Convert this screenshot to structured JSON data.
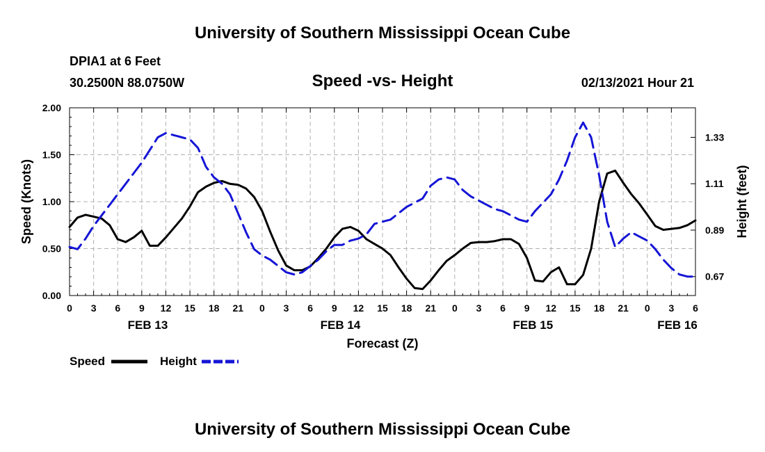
{
  "header": {
    "top_title": "University of Southern Mississippi Ocean Cube",
    "station": "DPIA1 at 6 Feet",
    "coords": "30.2500N 88.0750W",
    "datetime": "02/13/2021 Hour 21",
    "bottom_title": "University of Southern Mississippi Ocean Cube"
  },
  "colors": {
    "speed": "#000000",
    "height": "#1515d6",
    "grid": "#b0b0b0"
  },
  "legend": {
    "speed_label": "Speed",
    "height_label": "Height"
  },
  "chart_data": {
    "type": "line",
    "title": "Speed -vs- Height",
    "xlabel": "Forecast (Z)",
    "ylabel": "Speed (Knots)",
    "y2label": "Height (feet)",
    "x_range": [
      0,
      78
    ],
    "ylim": [
      0,
      2.0
    ],
    "y2lim": [
      0.58,
      1.47
    ],
    "x_ticks": [
      0,
      3,
      6,
      9,
      12,
      15,
      18,
      21,
      24,
      27,
      30,
      33,
      36,
      39,
      42,
      45,
      48,
      51,
      54,
      57,
      60,
      63,
      66,
      69,
      72,
      75,
      78
    ],
    "x_tick_labels": [
      "0",
      "3",
      "6",
      "9",
      "12",
      "15",
      "18",
      "21",
      "0",
      "3",
      "6",
      "9",
      "12",
      "15",
      "18",
      "21",
      "0",
      "3",
      "6",
      "9",
      "12",
      "15",
      "18",
      "21",
      "0",
      "3",
      "6"
    ],
    "date_labels": [
      {
        "x": 9.75,
        "label": "FEB 13"
      },
      {
        "x": 33.75,
        "label": "FEB 14"
      },
      {
        "x": 57.75,
        "label": "FEB 15"
      },
      {
        "x": 75.75,
        "label": "FEB 16"
      }
    ],
    "y_ticks": [
      0,
      0.5,
      1.0,
      1.5,
      2.0
    ],
    "y_tick_labels": [
      "0.00",
      "0.50",
      "1.00",
      "1.50",
      "2.00"
    ],
    "y2_ticks": [
      0.67,
      0.89,
      1.11,
      1.33
    ],
    "y2_tick_labels": [
      "0.67",
      "0.89",
      "1.11",
      "1.33"
    ],
    "series": [
      {
        "name": "Speed",
        "axis": "left",
        "x": [
          0,
          1,
          2,
          3,
          4,
          5,
          6,
          7,
          8,
          9,
          10,
          11,
          12,
          13,
          14,
          15,
          16,
          17,
          18,
          19,
          20,
          21,
          22,
          23,
          24,
          25,
          26,
          27,
          28,
          29,
          30,
          31,
          32,
          33,
          34,
          35,
          36,
          37,
          38,
          39,
          40,
          41,
          42,
          43,
          44,
          45,
          46,
          47,
          48,
          49,
          50,
          51,
          52,
          53,
          54,
          55,
          56,
          57,
          58,
          59,
          60,
          61,
          62,
          63,
          64,
          65,
          66,
          67,
          68,
          69,
          70,
          71,
          72,
          73,
          74,
          75,
          76,
          77,
          78
        ],
        "values": [
          0.73,
          0.83,
          0.86,
          0.84,
          0.82,
          0.75,
          0.6,
          0.57,
          0.62,
          0.69,
          0.53,
          0.53,
          0.62,
          0.72,
          0.82,
          0.95,
          1.1,
          1.16,
          1.2,
          1.22,
          1.19,
          1.18,
          1.14,
          1.05,
          0.9,
          0.68,
          0.48,
          0.32,
          0.27,
          0.27,
          0.31,
          0.4,
          0.5,
          0.62,
          0.71,
          0.73,
          0.69,
          0.6,
          0.55,
          0.5,
          0.43,
          0.3,
          0.18,
          0.08,
          0.07,
          0.16,
          0.27,
          0.37,
          0.43,
          0.5,
          0.56,
          0.57,
          0.57,
          0.58,
          0.6,
          0.6,
          0.55,
          0.4,
          0.16,
          0.15,
          0.25,
          0.3,
          0.12,
          0.12,
          0.22,
          0.5,
          1.0,
          1.3,
          1.33,
          1.2,
          1.08,
          0.98,
          0.86,
          0.74,
          0.7,
          0.71,
          0.72,
          0.75,
          0.8
        ]
      },
      {
        "name": "Height",
        "axis": "right",
        "x": [
          0,
          1,
          2,
          3,
          4,
          5,
          6,
          7,
          8,
          9,
          10,
          11,
          12,
          13,
          14,
          15,
          16,
          17,
          18,
          19,
          20,
          21,
          22,
          23,
          24,
          25,
          26,
          27,
          28,
          29,
          30,
          31,
          32,
          33,
          34,
          35,
          36,
          37,
          38,
          39,
          40,
          41,
          42,
          43,
          44,
          45,
          46,
          47,
          48,
          49,
          50,
          51,
          52,
          53,
          54,
          55,
          56,
          57,
          58,
          59,
          60,
          61,
          62,
          63,
          64,
          65,
          66,
          67,
          68,
          69,
          70,
          71,
          72,
          73,
          74,
          75,
          76,
          77,
          78
        ],
        "values": [
          0.81,
          0.8,
          0.85,
          0.91,
          0.96,
          1.01,
          1.06,
          1.11,
          1.16,
          1.21,
          1.27,
          1.33,
          1.35,
          1.34,
          1.33,
          1.32,
          1.28,
          1.19,
          1.14,
          1.11,
          1.06,
          0.97,
          0.88,
          0.8,
          0.77,
          0.75,
          0.72,
          0.69,
          0.68,
          0.69,
          0.72,
          0.75,
          0.79,
          0.82,
          0.82,
          0.84,
          0.85,
          0.87,
          0.92,
          0.93,
          0.94,
          0.97,
          1.0,
          1.02,
          1.04,
          1.1,
          1.13,
          1.14,
          1.13,
          1.08,
          1.05,
          1.03,
          1.01,
          0.99,
          0.98,
          0.96,
          0.94,
          0.93,
          0.98,
          1.02,
          1.06,
          1.13,
          1.22,
          1.33,
          1.4,
          1.33,
          1.15,
          0.93,
          0.81,
          0.85,
          0.88,
          0.86,
          0.84,
          0.8,
          0.75,
          0.71,
          0.68,
          0.67,
          0.67
        ]
      }
    ]
  }
}
